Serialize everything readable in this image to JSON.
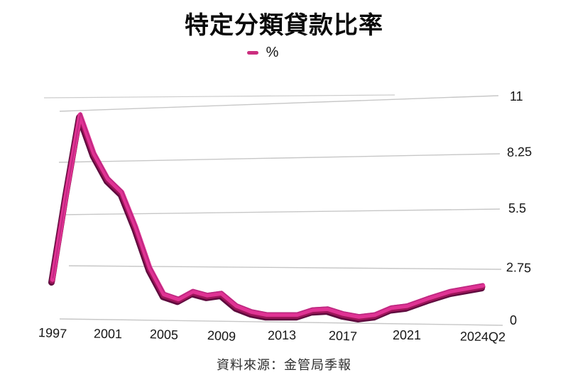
{
  "title": "特定分類貸款比率",
  "legend": {
    "label": "%",
    "color": "#cb2e7f"
  },
  "source": "資料來源：金管局季報",
  "colors": {
    "line_bright": "#e03394",
    "line_mid": "#9c1559",
    "line_shadow": "#5e0b3e",
    "line_top_edge": "#b8277d",
    "grid": "#c7c7c7",
    "text": "#151515"
  },
  "chart_data": {
    "type": "line",
    "title": "特定分類貸款比率",
    "series_name": "%",
    "unit": "%",
    "ylim": [
      0,
      11
    ],
    "y_tick_labels": [
      "0",
      "2.75",
      "5.5",
      "8.25",
      "11"
    ],
    "x_tick_labels": [
      "1997",
      "2001",
      "2005",
      "2009",
      "2013",
      "2017",
      "2021",
      "2024Q2"
    ],
    "grid": true,
    "legend_position": "top",
    "points": [
      [
        "1997",
        2.1
      ],
      [
        "1998",
        6.5
      ],
      [
        "1999",
        10.6
      ],
      [
        "2000",
        8.6
      ],
      [
        "2001",
        7.3
      ],
      [
        "2002",
        6.6
      ],
      [
        "2003",
        4.8
      ],
      [
        "2004",
        2.7
      ],
      [
        "2005",
        1.35
      ],
      [
        "2006",
        1.1
      ],
      [
        "2007",
        1.5
      ],
      [
        "2008",
        1.3
      ],
      [
        "2009",
        1.4
      ],
      [
        "2010",
        0.75
      ],
      [
        "2011",
        0.45
      ],
      [
        "2012",
        0.3
      ],
      [
        "2013",
        0.3
      ],
      [
        "2014",
        0.3
      ],
      [
        "2015",
        0.55
      ],
      [
        "2016",
        0.6
      ],
      [
        "2017",
        0.35
      ],
      [
        "2018",
        0.2
      ],
      [
        "2019",
        0.3
      ],
      [
        "2020",
        0.65
      ],
      [
        "2021",
        0.75
      ],
      [
        "2022",
        1.15
      ],
      [
        "2023",
        1.5
      ],
      [
        "2024Q2",
        1.8
      ]
    ],
    "source": "資料來源：金管局季報"
  }
}
